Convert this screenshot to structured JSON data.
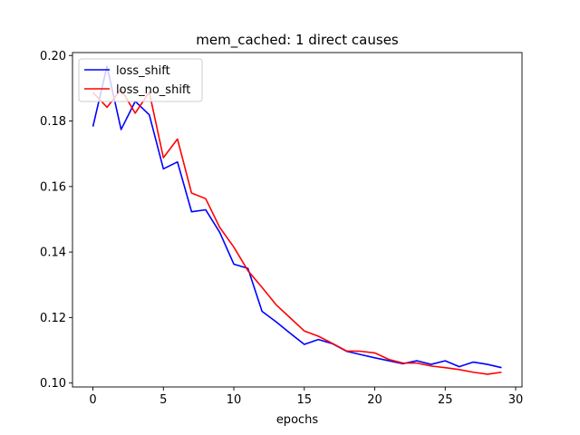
{
  "chart_data": {
    "type": "line",
    "title": "mem_cached: 1 direct causes",
    "xlabel": "epochs",
    "ylabel": "",
    "xlim": [
      -1.45,
      30.45
    ],
    "ylim": [
      0.0988,
      0.2009
    ],
    "xticks": [
      0,
      5,
      10,
      15,
      20,
      25,
      30
    ],
    "yticks": [
      0.1,
      0.12,
      0.14,
      0.16,
      0.18,
      0.2
    ],
    "ytick_labels": [
      "0.10",
      "0.12",
      "0.14",
      "0.16",
      "0.18",
      "0.20"
    ],
    "grid": false,
    "legend_placement": "top-left",
    "x": [
      0,
      1,
      2,
      3,
      4,
      5,
      6,
      7,
      8,
      9,
      10,
      11,
      12,
      13,
      14,
      15,
      16,
      17,
      18,
      19,
      20,
      21,
      22,
      23,
      24,
      25,
      26,
      27,
      28,
      29
    ],
    "series": [
      {
        "name": "loss_shift",
        "color": "#0000ff",
        "values": [
          0.1783,
          0.1967,
          0.1774,
          0.186,
          0.1819,
          0.1654,
          0.1675,
          0.1523,
          0.1529,
          0.146,
          0.1363,
          0.135,
          0.1219,
          0.1187,
          0.1152,
          0.1118,
          0.1133,
          0.112,
          0.1097,
          0.1087,
          0.1077,
          0.1068,
          0.1059,
          0.1068,
          0.1057,
          0.1068,
          0.105,
          0.1064,
          0.1057,
          0.1047
        ]
      },
      {
        "name": "loss_no_shift",
        "color": "#ff0000",
        "values": [
          0.1887,
          0.1842,
          0.1897,
          0.1824,
          0.1888,
          0.1688,
          0.1745,
          0.158,
          0.1563,
          0.1475,
          0.1415,
          0.1343,
          0.1292,
          0.1239,
          0.1199,
          0.1159,
          0.1143,
          0.1121,
          0.1098,
          0.1097,
          0.1092,
          0.1072,
          0.1061,
          0.1061,
          0.1052,
          0.1047,
          0.1041,
          0.1033,
          0.1027,
          0.1033
        ]
      }
    ]
  }
}
